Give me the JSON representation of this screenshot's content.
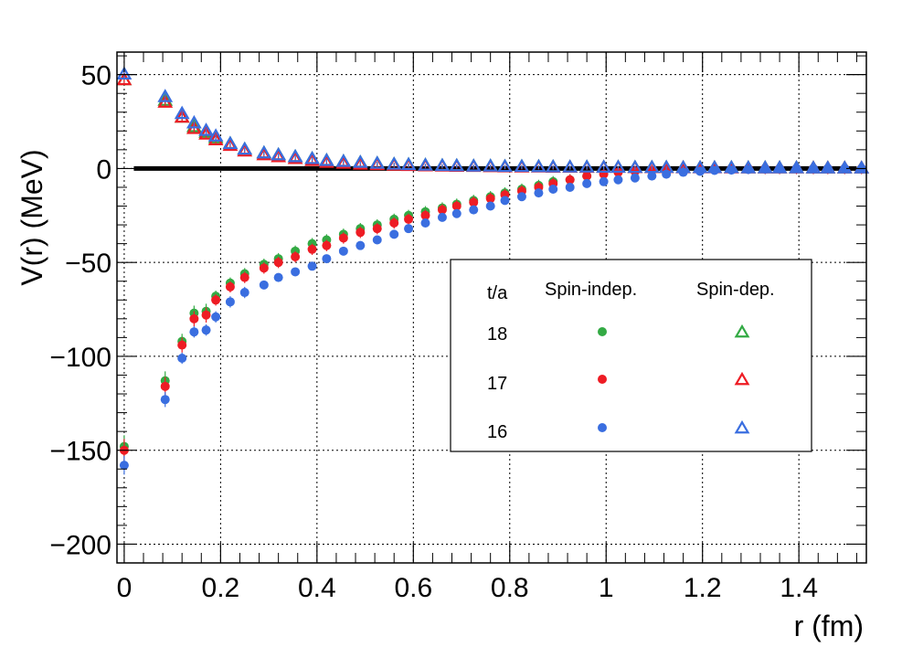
{
  "chart_data": {
    "type": "scatter",
    "xlabel": "r (fm)",
    "ylabel": "V(r) (MeV)",
    "xlim": [
      -0.015,
      1.54
    ],
    "ylim": [
      -210,
      62
    ],
    "x_ticks": [
      "0",
      "0.2",
      "0.4",
      "0.6",
      "0.8",
      "1",
      "1.2",
      "1.4"
    ],
    "y_ticks": [
      "50",
      "0",
      "−50",
      "−100",
      "−150",
      "−200"
    ],
    "grid": true,
    "zero_line": true,
    "legend_position": "center-right",
    "legend": {
      "header_ta": "t/a",
      "header_indep": "Spin-indep.",
      "header_dep": "Spin-dep.",
      "rows": [
        "18",
        "17",
        "16"
      ]
    },
    "series": [
      {
        "t_a": "18",
        "color": "#33aa44",
        "spin_indep": {
          "x": [
            0,
            0.085,
            0.12,
            0.145,
            0.17,
            0.19,
            0.22,
            0.25,
            0.29,
            0.32,
            0.355,
            0.39,
            0.42,
            0.455,
            0.49,
            0.525,
            0.56,
            0.59,
            0.625,
            0.66,
            0.69,
            0.725,
            0.76,
            0.79,
            0.825,
            0.86,
            0.89,
            0.925,
            0.96
          ],
          "y": [
            -148,
            -113,
            -92,
            -77,
            -76,
            -68,
            -61,
            -56,
            -51,
            -48,
            -44,
            -40,
            -38,
            -35,
            -32,
            -30,
            -27,
            -25,
            -23,
            -21,
            -19,
            -17,
            -15,
            -13,
            -11,
            -9,
            -7,
            -6,
            -4
          ],
          "err": [
            6,
            5,
            4,
            4,
            4,
            3,
            3,
            3,
            3,
            3,
            3,
            3,
            3,
            3,
            3,
            3,
            3,
            3,
            3,
            3,
            3,
            3,
            3,
            3,
            3,
            3,
            3,
            3,
            3
          ]
        },
        "spin_dep": {
          "x": [
            0,
            0.085,
            0.12,
            0.145,
            0.17,
            0.19,
            0.22,
            0.25,
            0.29,
            0.32,
            0.355,
            0.39,
            0.42,
            0.455,
            0.49,
            0.525,
            0.56,
            0.59,
            0.625,
            0.66,
            0.69,
            0.725,
            0.76,
            0.79,
            0.825,
            0.86,
            0.89,
            0.925,
            0.96,
            0.995,
            1.025,
            1.06,
            1.095,
            1.125,
            1.16,
            1.195,
            1.225,
            1.26,
            1.295,
            1.33,
            1.36,
            1.395,
            1.43,
            1.46,
            1.495,
            1.53
          ],
          "y": [
            47,
            36,
            27,
            22,
            19,
            16,
            13,
            10,
            8,
            7,
            6,
            5,
            4,
            3.5,
            3,
            2.5,
            2,
            1.8,
            1.5,
            1.3,
            1.2,
            1,
            1,
            0.8,
            0.8,
            0.7,
            0.6,
            0.5,
            0.5,
            0.4,
            0.4,
            0.3,
            0.3,
            0.3,
            0.2,
            0.2,
            0.2,
            0.2,
            0.1,
            0.1,
            0.1,
            0.1,
            0,
            0,
            0,
            0
          ],
          "err": [
            2,
            2,
            2,
            1.5,
            1.5,
            1.5,
            1,
            1,
            1,
            1,
            1,
            1,
            1,
            1,
            1,
            1,
            1,
            1,
            1,
            1,
            1,
            1,
            1,
            1,
            1,
            1,
            1,
            1,
            1,
            1,
            1,
            1,
            1,
            1,
            1,
            1,
            1,
            1,
            2,
            2,
            2,
            2,
            2,
            2,
            2,
            2
          ]
        }
      },
      {
        "t_a": "17",
        "color": "#ee1c24",
        "spin_indep": {
          "x": [
            0,
            0.085,
            0.12,
            0.145,
            0.17,
            0.19,
            0.22,
            0.25,
            0.29,
            0.32,
            0.355,
            0.39,
            0.42,
            0.455,
            0.49,
            0.525,
            0.56,
            0.59,
            0.625,
            0.66,
            0.69,
            0.725,
            0.76,
            0.79,
            0.825,
            0.86,
            0.89,
            0.925,
            0.96,
            0.995,
            1.025,
            1.06,
            1.095,
            1.125,
            1.16,
            1.195,
            1.225,
            1.26,
            1.295,
            1.33,
            1.36,
            1.395,
            1.43,
            1.46,
            1.495,
            1.53
          ],
          "y": [
            -150,
            -116,
            -94,
            -80,
            -78,
            -70,
            -63,
            -58,
            -53,
            -50,
            -47,
            -43,
            -41,
            -37,
            -34,
            -32,
            -29,
            -27,
            -25,
            -22,
            -20,
            -18,
            -16,
            -14,
            -12,
            -10,
            -8,
            -6,
            -4,
            -3,
            -2,
            -1.5,
            -1,
            -0.5,
            -0.3,
            -0.2,
            0,
            0,
            0,
            0,
            0,
            0,
            0,
            0,
            0,
            0
          ],
          "err": [
            6,
            5,
            4,
            4,
            4,
            3,
            3,
            3,
            3,
            3,
            3,
            3,
            3,
            3,
            3,
            3,
            3,
            3,
            3,
            3,
            3,
            3,
            3,
            3,
            3,
            3,
            3,
            3,
            3,
            3,
            3,
            3,
            3,
            3,
            3,
            3,
            3,
            3,
            3,
            3,
            3,
            3,
            3,
            3,
            3,
            3
          ]
        },
        "spin_dep": {
          "x": [
            0,
            0.085,
            0.12,
            0.145,
            0.17,
            0.19,
            0.22,
            0.25,
            0.29,
            0.32,
            0.355,
            0.39,
            0.42,
            0.455,
            0.49,
            0.525,
            0.56,
            0.59,
            0.625,
            0.66,
            0.69,
            0.725,
            0.76,
            0.79,
            0.825,
            0.86,
            0.89,
            0.925,
            0.96,
            0.995,
            1.025,
            1.06,
            1.095,
            1.125,
            1.16,
            1.195,
            1.225,
            1.26,
            1.295,
            1.33,
            1.36,
            1.395,
            1.43,
            1.46,
            1.495,
            1.53
          ],
          "y": [
            47,
            35,
            27,
            21,
            18,
            15,
            12,
            9,
            7,
            6,
            5,
            4,
            3,
            2.5,
            2,
            1.8,
            1.5,
            1.3,
            1.1,
            1,
            0.9,
            0.8,
            0.7,
            0.6,
            0.5,
            0.5,
            0.4,
            0.4,
            0.3,
            0.3,
            0.3,
            0.2,
            0.2,
            0.2,
            0.1,
            0.1,
            0.1,
            0,
            0,
            0,
            0,
            0,
            0,
            0,
            0,
            0
          ],
          "err": [
            2,
            2,
            2,
            1.5,
            1.5,
            1.5,
            1,
            1,
            1,
            1,
            1,
            1,
            1,
            1,
            1,
            1,
            1,
            1,
            1,
            1,
            1,
            1,
            1,
            1,
            1,
            1,
            1,
            1,
            1,
            1,
            1,
            1,
            1,
            1,
            1,
            1,
            1,
            1,
            1,
            1,
            1,
            1,
            1,
            1,
            1,
            1
          ]
        }
      },
      {
        "t_a": "16",
        "color": "#3a6ee0",
        "spin_indep": {
          "x": [
            0,
            0.085,
            0.12,
            0.145,
            0.17,
            0.19,
            0.22,
            0.25,
            0.29,
            0.32,
            0.355,
            0.39,
            0.42,
            0.455,
            0.49,
            0.525,
            0.56,
            0.59,
            0.625,
            0.66,
            0.69,
            0.725,
            0.76,
            0.79,
            0.825,
            0.86,
            0.89,
            0.925,
            0.96,
            0.995,
            1.025,
            1.06,
            1.095,
            1.125,
            1.16,
            1.195,
            1.225,
            1.26,
            1.295,
            1.33,
            1.36,
            1.395,
            1.43,
            1.46,
            1.495,
            1.53
          ],
          "y": [
            -158,
            -123,
            -101,
            -87,
            -86,
            -79,
            -71,
            -66,
            -62,
            -58,
            -55,
            -52,
            -48,
            -44,
            -41,
            -38,
            -35,
            -32,
            -29,
            -26,
            -24,
            -22,
            -20,
            -17,
            -15,
            -13,
            -11,
            -10,
            -8,
            -7,
            -6,
            -5,
            -4,
            -3,
            -2,
            -1.5,
            -1,
            -0.8,
            -0.5,
            -0.3,
            -0.2,
            0,
            0,
            0,
            0,
            0
          ],
          "err": [
            5,
            4,
            3,
            3,
            3,
            3,
            3,
            3,
            2,
            2,
            2,
            2,
            2,
            2,
            2,
            2,
            2,
            2,
            2,
            2,
            2,
            2,
            2,
            2,
            2,
            2,
            2,
            2,
            2,
            2,
            2,
            2,
            2,
            2,
            2,
            2,
            2,
            2,
            2,
            2,
            2,
            2,
            2,
            2,
            2,
            2
          ]
        },
        "spin_dep": {
          "x": [
            0,
            0.085,
            0.12,
            0.145,
            0.17,
            0.19,
            0.22,
            0.25,
            0.29,
            0.32,
            0.355,
            0.39,
            0.42,
            0.455,
            0.49,
            0.525,
            0.56,
            0.59,
            0.625,
            0.66,
            0.69,
            0.725,
            0.76,
            0.79,
            0.825,
            0.86,
            0.89,
            0.925,
            0.96,
            0.995,
            1.025,
            1.06,
            1.095,
            1.125,
            1.16,
            1.195,
            1.225,
            1.26,
            1.295,
            1.33,
            1.36,
            1.395,
            1.43,
            1.46,
            1.495,
            1.53
          ],
          "y": [
            50,
            38,
            29,
            24,
            20,
            17,
            13,
            10,
            8,
            7,
            6,
            5,
            4,
            3.5,
            3,
            2.5,
            2,
            1.8,
            1.5,
            1.3,
            1.2,
            1,
            1,
            0.8,
            0.8,
            0.7,
            0.6,
            0.5,
            0.5,
            0.4,
            0.4,
            0.3,
            0.3,
            0.3,
            0.2,
            0.2,
            0.2,
            0.2,
            0.1,
            0.1,
            0.1,
            0.1,
            0,
            0,
            0,
            0
          ],
          "err": [
            2,
            2,
            2,
            1.5,
            1.5,
            1.5,
            1,
            1,
            1,
            1,
            1,
            1,
            1,
            1,
            1,
            1,
            1,
            1,
            1,
            1,
            1,
            1,
            1,
            1,
            1,
            1,
            1,
            1,
            1,
            1,
            1,
            1,
            1,
            1,
            1,
            1,
            1,
            1,
            1,
            1,
            1,
            1,
            1,
            1,
            1,
            1
          ]
        }
      }
    ]
  }
}
